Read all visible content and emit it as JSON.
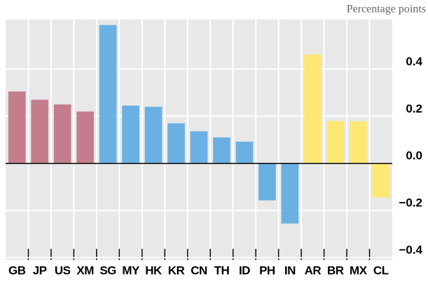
{
  "chart_data": {
    "type": "bar",
    "axis_label": "Percentage points",
    "categories": [
      "GB",
      "JP",
      "US",
      "XM",
      "SG",
      "MY",
      "HK",
      "KR",
      "CN",
      "TH",
      "ID",
      "PH",
      "IN",
      "AR",
      "BR",
      "MX",
      "CL"
    ],
    "values": [
      0.305,
      0.27,
      0.25,
      0.22,
      0.587,
      0.245,
      0.24,
      0.17,
      0.136,
      0.11,
      0.092,
      -0.157,
      -0.255,
      0.462,
      0.18,
      0.178,
      -0.145
    ],
    "colors": [
      "#c47d8d",
      "#c47d8d",
      "#c47d8d",
      "#c47d8d",
      "#6ab0e2",
      "#6ab0e2",
      "#6ab0e2",
      "#6ab0e2",
      "#6ab0e2",
      "#6ab0e2",
      "#6ab0e2",
      "#6ab0e2",
      "#6ab0e2",
      "#fde874",
      "#fde874",
      "#fde874",
      "#fde874"
    ],
    "ylim": [
      -0.41,
      0.61
    ],
    "yticks": [
      {
        "value": -0.4,
        "label": "−0.4"
      },
      {
        "value": -0.2,
        "label": "−0.2"
      },
      {
        "value": 0,
        "label": "0.0"
      },
      0.2,
      0.4
    ],
    "grid": true
  }
}
